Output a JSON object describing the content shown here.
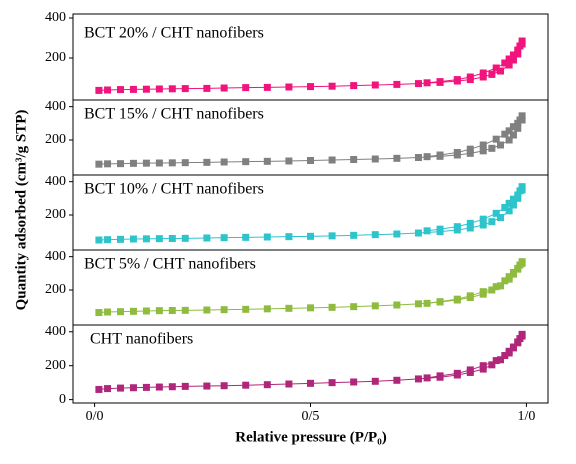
{
  "chart_data": [
    {
      "type": "scatter",
      "title": "BCT 20% / CHT nanofibers",
      "ylabel": "Quantity adsorbed (cm³/g STP)",
      "xlim": [
        -0.05,
        1.05
      ],
      "ylim": [
        -10,
        420
      ],
      "yticks": [
        200,
        400
      ],
      "series": [
        {
          "color": "#f0147c",
          "x": [
            0.01,
            0.03,
            0.06,
            0.09,
            0.12,
            0.15,
            0.18,
            0.21,
            0.26,
            0.3,
            0.35,
            0.4,
            0.45,
            0.5,
            0.55,
            0.6,
            0.65,
            0.7,
            0.75,
            0.8,
            0.84,
            0.87,
            0.9,
            0.92,
            0.94,
            0.96,
            0.97,
            0.98,
            0.99
          ],
          "values": [
            38,
            40,
            42,
            43,
            44,
            45,
            46,
            47,
            48,
            50,
            52,
            53,
            55,
            57,
            59,
            62,
            65,
            68,
            72,
            78,
            85,
            92,
            105,
            118,
            135,
            165,
            190,
            220,
            270
          ]
        },
        {
          "color": "#f0147c",
          "x": [
            0.99,
            0.985,
            0.98,
            0.97,
            0.96,
            0.95,
            0.93,
            0.9,
            0.87,
            0.84,
            0.8,
            0.77
          ],
          "values": [
            285,
            260,
            240,
            215,
            195,
            175,
            150,
            125,
            105,
            92,
            82,
            76
          ]
        }
      ]
    },
    {
      "type": "scatter",
      "title": "BCT 15% / CHT nanofibers",
      "xlim": [
        -0.05,
        1.05
      ],
      "ylim": [
        -10,
        440
      ],
      "yticks": [
        200,
        400
      ],
      "series": [
        {
          "color": "#808080",
          "x": [
            0.01,
            0.03,
            0.06,
            0.09,
            0.12,
            0.15,
            0.18,
            0.21,
            0.26,
            0.3,
            0.35,
            0.4,
            0.45,
            0.5,
            0.55,
            0.6,
            0.65,
            0.7,
            0.75,
            0.8,
            0.84,
            0.87,
            0.9,
            0.92,
            0.94,
            0.96,
            0.97,
            0.98,
            0.99
          ],
          "values": [
            55,
            57,
            58,
            60,
            61,
            62,
            63,
            64,
            66,
            68,
            70,
            72,
            74,
            77,
            80,
            83,
            86,
            90,
            95,
            102,
            110,
            120,
            135,
            150,
            170,
            200,
            230,
            270,
            320
          ]
        },
        {
          "color": "#808080",
          "x": [
            0.99,
            0.985,
            0.98,
            0.97,
            0.96,
            0.95,
            0.93,
            0.9,
            0.87,
            0.84,
            0.8,
            0.77
          ],
          "values": [
            345,
            320,
            300,
            280,
            255,
            235,
            205,
            170,
            145,
            125,
            110,
            100
          ]
        }
      ]
    },
    {
      "type": "scatter",
      "title": "BCT 10% / CHT nanofibers",
      "xlim": [
        -0.05,
        1.05
      ],
      "ylim": [
        -10,
        440
      ],
      "yticks": [
        200,
        400
      ],
      "series": [
        {
          "color": "#2ec4cc",
          "x": [
            0.01,
            0.03,
            0.06,
            0.09,
            0.12,
            0.15,
            0.18,
            0.21,
            0.26,
            0.3,
            0.35,
            0.4,
            0.45,
            0.5,
            0.55,
            0.6,
            0.65,
            0.7,
            0.75,
            0.8,
            0.84,
            0.87,
            0.9,
            0.92,
            0.94,
            0.96,
            0.97,
            0.98,
            0.99
          ],
          "values": [
            50,
            52,
            54,
            56,
            57,
            58,
            59,
            60,
            62,
            64,
            66,
            68,
            70,
            72,
            75,
            78,
            82,
            86,
            92,
            100,
            110,
            122,
            140,
            160,
            185,
            225,
            260,
            300,
            350
          ]
        },
        {
          "color": "#2ec4cc",
          "x": [
            0.99,
            0.985,
            0.98,
            0.97,
            0.96,
            0.95,
            0.93,
            0.9,
            0.87,
            0.84,
            0.8,
            0.77
          ],
          "values": [
            370,
            345,
            320,
            295,
            270,
            245,
            210,
            175,
            150,
            130,
            115,
            105
          ]
        }
      ]
    },
    {
      "type": "scatter",
      "title": "BCT 5% / CHT nanofibers",
      "xlim": [
        -0.05,
        1.05
      ],
      "ylim": [
        -10,
        440
      ],
      "yticks": [
        200,
        400
      ],
      "series": [
        {
          "color": "#8fbc3f",
          "x": [
            0.01,
            0.03,
            0.06,
            0.09,
            0.12,
            0.15,
            0.18,
            0.21,
            0.26,
            0.3,
            0.35,
            0.4,
            0.45,
            0.5,
            0.55,
            0.6,
            0.65,
            0.7,
            0.75,
            0.8,
            0.84,
            0.87,
            0.9,
            0.92,
            0.94,
            0.96,
            0.97,
            0.98,
            0.99
          ],
          "values": [
            65,
            68,
            70,
            72,
            74,
            76,
            77,
            78,
            80,
            82,
            84,
            87,
            90,
            93,
            96,
            100,
            105,
            110,
            117,
            128,
            140,
            155,
            175,
            200,
            225,
            265,
            295,
            325,
            360
          ]
        },
        {
          "color": "#8fbc3f",
          "x": [
            0.99,
            0.985,
            0.98,
            0.97,
            0.96,
            0.95,
            0.93,
            0.9,
            0.87,
            0.84,
            0.8,
            0.77
          ],
          "values": [
            370,
            350,
            330,
            305,
            280,
            255,
            220,
            190,
            165,
            145,
            130,
            120
          ]
        }
      ]
    },
    {
      "type": "scatter",
      "title": "CHT nanofibers",
      "xlabel": "Relative pressure (P/P₀)",
      "xlim": [
        -0.05,
        1.05
      ],
      "ylim": [
        -20,
        440
      ],
      "yticks": [
        0,
        200,
        400
      ],
      "xticks": [
        {
          "value": 0,
          "label": "0/0"
        },
        {
          "value": 0.5,
          "label": "0/5"
        },
        {
          "value": 1,
          "label": "1/0"
        }
      ],
      "series": [
        {
          "color": "#b0267a",
          "x": [
            0.01,
            0.03,
            0.06,
            0.09,
            0.12,
            0.15,
            0.18,
            0.21,
            0.26,
            0.3,
            0.35,
            0.4,
            0.45,
            0.5,
            0.55,
            0.6,
            0.65,
            0.7,
            0.75,
            0.8,
            0.84,
            0.87,
            0.9,
            0.92,
            0.94,
            0.96,
            0.97,
            0.98,
            0.99
          ],
          "values": [
            60,
            65,
            68,
            70,
            72,
            74,
            76,
            78,
            80,
            82,
            85,
            88,
            92,
            96,
            100,
            104,
            108,
            114,
            122,
            132,
            145,
            160,
            180,
            205,
            235,
            275,
            305,
            340,
            375
          ]
        },
        {
          "color": "#b0267a",
          "x": [
            0.99,
            0.985,
            0.98,
            0.97,
            0.96,
            0.95,
            0.93,
            0.9,
            0.87,
            0.84,
            0.8,
            0.77
          ],
          "values": [
            385,
            360,
            335,
            310,
            285,
            260,
            230,
            200,
            175,
            155,
            140,
            128
          ]
        }
      ]
    }
  ]
}
